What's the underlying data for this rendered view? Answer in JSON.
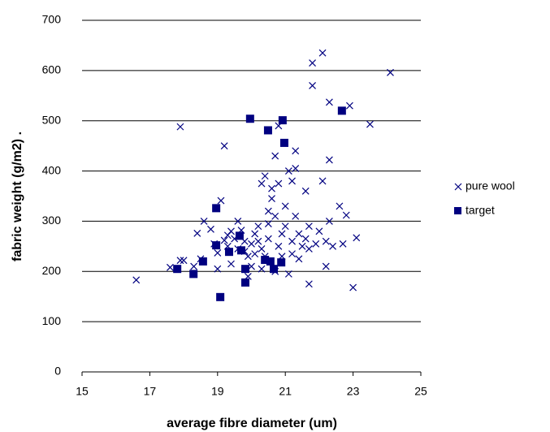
{
  "chart_data": {
    "type": "scatter",
    "xlabel": "average fibre diameter (um)",
    "ylabel": "fabric weight (g/m2) .",
    "xlim": [
      15,
      25
    ],
    "xticks": [
      15,
      17,
      19,
      21,
      23,
      25
    ],
    "ylim": [
      0,
      700
    ],
    "yticks": [
      0,
      100,
      200,
      300,
      400,
      500,
      600,
      700
    ],
    "grid": true,
    "legend": "right",
    "series": [
      {
        "name": "pure wool",
        "color": "#000080",
        "marker": "x",
        "x": [
          16.6,
          17.6,
          18.0,
          17.9,
          18.4,
          18.5,
          18.6,
          18.8,
          18.9,
          19.0,
          19.1,
          19.0,
          19.2,
          19.2,
          19.3,
          19.3,
          19.4,
          19.4,
          19.5,
          19.6,
          19.6,
          19.7,
          19.8,
          19.8,
          19.9,
          19.9,
          20.0,
          20.0,
          20.1,
          20.1,
          20.2,
          20.2,
          20.3,
          20.3,
          20.4,
          20.3,
          20.4,
          20.5,
          20.5,
          20.5,
          20.6,
          20.6,
          20.7,
          20.7,
          20.7,
          20.8,
          20.8,
          20.8,
          20.9,
          20.9,
          21.0,
          21.0,
          21.1,
          21.1,
          21.2,
          21.2,
          21.2,
          21.3,
          21.3,
          21.3,
          21.4,
          21.4,
          21.5,
          21.6,
          21.6,
          21.7,
          21.7,
          21.7,
          21.8,
          21.8,
          21.9,
          22.0,
          22.1,
          22.1,
          22.2,
          22.2,
          22.3,
          22.3,
          22.3,
          22.4,
          22.6,
          22.7,
          22.8,
          22.9,
          23.0,
          23.1,
          23.5,
          24.1,
          17.9,
          18.3
        ],
        "values": [
          183,
          208,
          222,
          488,
          276,
          225,
          300,
          284,
          255,
          237,
          341,
          205,
          450,
          262,
          250,
          272,
          215,
          280,
          265,
          300,
          245,
          282,
          240,
          260,
          190,
          230,
          255,
          210,
          275,
          235,
          260,
          290,
          245,
          375,
          390,
          205,
          230,
          265,
          320,
          295,
          345,
          365,
          430,
          200,
          310,
          375,
          490,
          250,
          230,
          275,
          330,
          290,
          400,
          195,
          380,
          260,
          235,
          310,
          405,
          440,
          275,
          225,
          250,
          360,
          265,
          290,
          245,
          175,
          570,
          615,
          255,
          280,
          380,
          635,
          210,
          260,
          300,
          537,
          422,
          250,
          330,
          255,
          312,
          530,
          168,
          267,
          493,
          596,
          222,
          210
        ]
      },
      {
        "name": "target",
        "color": "#000080",
        "marker": "square",
        "x": [
          17.81,
          18.29,
          18.57,
          18.96,
          18.96,
          19.08,
          19.34,
          19.65,
          19.7,
          19.82,
          19.82,
          19.96,
          20.4,
          20.49,
          20.56,
          20.66,
          20.88,
          20.92,
          20.97,
          22.67
        ],
        "values": [
          205,
          195,
          220,
          326,
          252,
          149,
          239,
          271,
          242,
          205,
          178,
          504,
          223,
          481,
          220,
          205,
          218,
          501,
          456,
          520
        ]
      }
    ]
  }
}
